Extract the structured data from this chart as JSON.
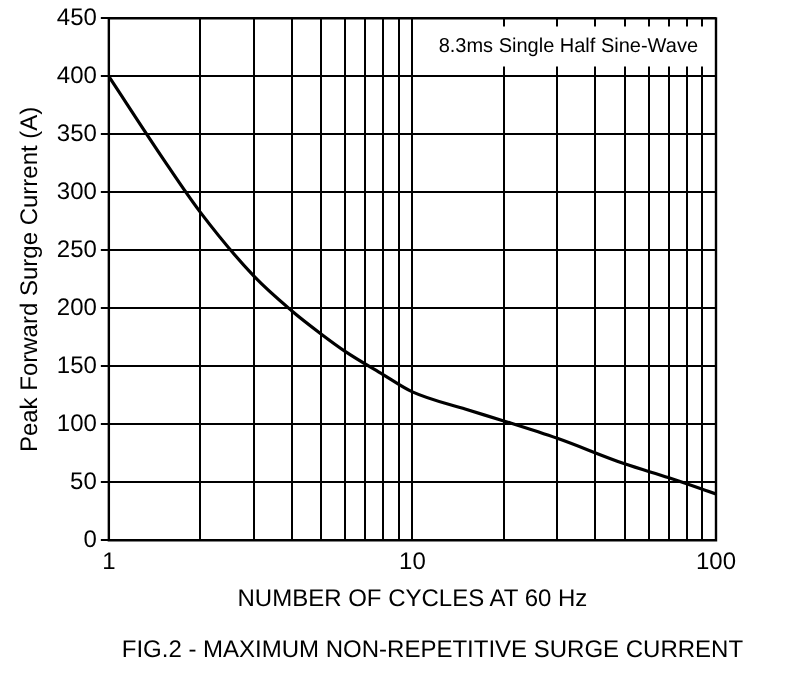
{
  "chart_data": {
    "type": "line",
    "xlabel": "NUMBER OF CYCLES AT 60 Hz",
    "ylabel": "Peak Forward Surge Current (A)",
    "annotations": [
      "8.3ms Single Half Sine-Wave",
      "FIG.2 - MAXIMUM NON-REPETITIVE SURGE CURRENT"
    ],
    "log": "x",
    "grid": true,
    "legend": false,
    "marker": "none",
    "line_style": "solid",
    "xlim": [
      1,
      100
    ],
    "ylim": [
      0,
      450
    ],
    "xticks": [
      1,
      {
        "value": 2,
        "label": null
      },
      {
        "value": 3,
        "label": null
      },
      {
        "value": 4,
        "label": null
      },
      {
        "value": 5,
        "label": null
      },
      {
        "value": 6,
        "label": null
      },
      {
        "value": 7,
        "label": null
      },
      {
        "value": 8,
        "label": null
      },
      {
        "value": 9,
        "label": null
      },
      10,
      {
        "value": 20,
        "label": null
      },
      {
        "value": 30,
        "label": null
      },
      {
        "value": 40,
        "label": null
      },
      {
        "value": 50,
        "label": null
      },
      {
        "value": 60,
        "label": null
      },
      {
        "value": 70,
        "label": null
      },
      {
        "value": 80,
        "label": null
      },
      {
        "value": 90,
        "label": null
      },
      100
    ],
    "yticks": [
      0,
      50,
      100,
      150,
      200,
      250,
      300,
      350,
      400,
      450
    ],
    "x": [
      1,
      1.5,
      2,
      3,
      4,
      5,
      6,
      8,
      10,
      15,
      20,
      30,
      50,
      70,
      100
    ],
    "series": [
      {
        "color": "#000000",
        "values": [
          400,
          330,
          283,
          228,
          198,
          178,
          163,
          143,
          128,
          113,
          103,
          88,
          66,
          54,
          40
        ]
      }
    ]
  }
}
